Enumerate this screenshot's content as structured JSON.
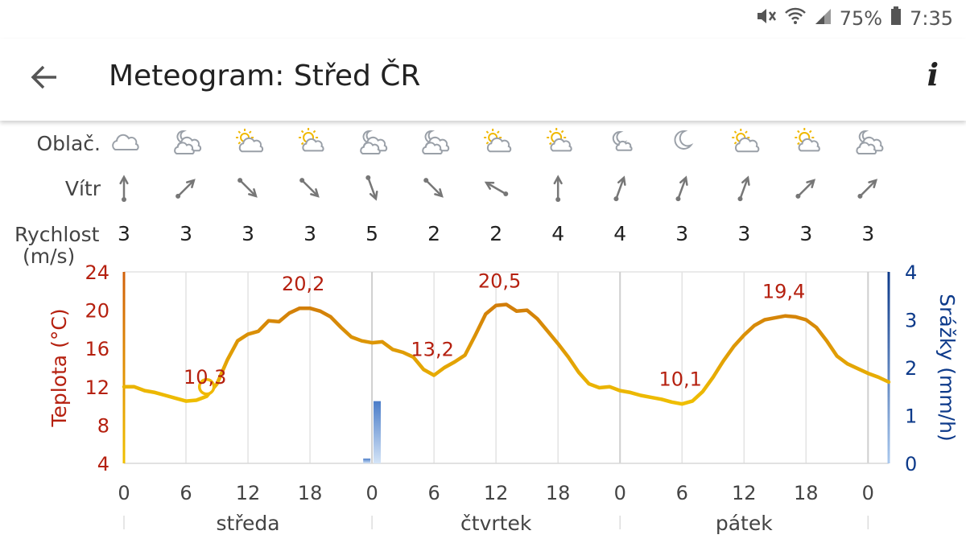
{
  "status": {
    "battery": "75%",
    "time": "7:35"
  },
  "appbar": {
    "title": "Meteogram: Střed ČR",
    "info_label": "i"
  },
  "rows": {
    "cloud_label": "Oblač.",
    "wind_label": "Vítr",
    "speed_label": "Rychlost",
    "speed_unit": "(m/s)"
  },
  "columns": [
    {
      "sky": "cloudy",
      "wind": "N",
      "speed": "3"
    },
    {
      "sky": "partly-cloudy-night",
      "wind": "NE",
      "speed": "3"
    },
    {
      "sky": "sun-cloud",
      "wind": "SE",
      "speed": "3"
    },
    {
      "sky": "mostly-sunny",
      "wind": "SE",
      "speed": "3"
    },
    {
      "sky": "partly-cloudy-night",
      "wind": "SSE",
      "speed": "5"
    },
    {
      "sky": "partly-cloudy-night",
      "wind": "SE",
      "speed": "2"
    },
    {
      "sky": "sun-cloud",
      "wind": "NW",
      "speed": "2"
    },
    {
      "sky": "mostly-sunny",
      "wind": "N",
      "speed": "4"
    },
    {
      "sky": "moon-cloud",
      "wind": "NNE",
      "speed": "4"
    },
    {
      "sky": "moon",
      "wind": "NNE",
      "speed": "3"
    },
    {
      "sky": "sun-cloud",
      "wind": "NNE",
      "speed": "3"
    },
    {
      "sky": "mostly-sunny",
      "wind": "NE",
      "speed": "3"
    },
    {
      "sky": "partly-cloudy-night",
      "wind": "NE",
      "speed": "3"
    }
  ],
  "chart_data": {
    "type": "line",
    "ylabel": "Teplota (°C)",
    "y2label": "Srážky (mm/h)",
    "ylim": [
      4,
      24
    ],
    "y2lim": [
      0,
      4
    ],
    "yticks": [
      4,
      8,
      12,
      16,
      20,
      24
    ],
    "y2ticks": [
      0,
      1,
      2,
      3,
      4
    ],
    "x_ticks": [
      "0",
      "6",
      "12",
      "18",
      "0",
      "6",
      "12",
      "18",
      "0",
      "6",
      "12",
      "18",
      "0"
    ],
    "days": [
      "středa",
      "čtvrtek",
      "pátek"
    ],
    "series": [
      {
        "name": "Teplota",
        "x": [
          0,
          1,
          2,
          3,
          4,
          5,
          6,
          7,
          8,
          9,
          10,
          11,
          12,
          13,
          14,
          15,
          16,
          17,
          18,
          19,
          20,
          21,
          22,
          23,
          24,
          25,
          26,
          27,
          28,
          29,
          30,
          31,
          32,
          33,
          34,
          35,
          36,
          37,
          38,
          39,
          40,
          41,
          42,
          43,
          44,
          45,
          46,
          47,
          48,
          49,
          50,
          51,
          52,
          53,
          54,
          55,
          56,
          57,
          58,
          59,
          60,
          61,
          62,
          63,
          64,
          65,
          66,
          67,
          68,
          69,
          70,
          71,
          72,
          73,
          74
        ],
        "values": [
          12,
          12,
          11.6,
          11.4,
          11.1,
          10.8,
          10.5,
          10.6,
          11.0,
          12.3,
          14.8,
          16.8,
          17.5,
          17.8,
          18.9,
          18.8,
          19.7,
          20.2,
          20.2,
          19.9,
          19.3,
          18.2,
          17.2,
          16.8,
          16.6,
          16.7,
          15.9,
          15.6,
          15.1,
          13.8,
          13.2,
          14.0,
          14.6,
          15.3,
          17.4,
          19.6,
          20.5,
          20.6,
          19.9,
          20.0,
          19.1,
          17.8,
          16.5,
          15.1,
          13.5,
          12.3,
          11.9,
          12.0,
          11.6,
          11.4,
          11.1,
          10.9,
          10.7,
          10.4,
          10.2,
          10.5,
          11.5,
          13.0,
          14.7,
          16.2,
          17.4,
          18.4,
          19.0,
          19.2,
          19.4,
          19.3,
          19.0,
          18.2,
          16.8,
          15.2,
          14.4,
          13.9,
          13.4,
          13.0,
          12.5
        ]
      },
      {
        "name": "Srážky",
        "type": "bar",
        "x": [
          23.5,
          24.5
        ],
        "values": [
          0.1,
          1.3
        ]
      }
    ],
    "annotations": [
      {
        "x": 8,
        "value": 10.3,
        "label": "10,3"
      },
      {
        "x": 17.5,
        "value": 20.2,
        "label": "20,2"
      },
      {
        "x": 30,
        "value": 13.2,
        "label": "13,2"
      },
      {
        "x": 36.5,
        "value": 20.5,
        "label": "20,5"
      },
      {
        "x": 54,
        "value": 10.1,
        "label": "10,1"
      },
      {
        "x": 64,
        "value": 19.4,
        "label": "19,4"
      }
    ],
    "marker": {
      "x": 8,
      "value": 12
    },
    "colors": {
      "temp_axis": "#b5200f",
      "precip_axis": "#0d3a8a",
      "grid": "#e3e3e3",
      "bar": "#6a96d4",
      "line_hot": "#d07a0a",
      "line_cool": "#f0c000"
    }
  }
}
